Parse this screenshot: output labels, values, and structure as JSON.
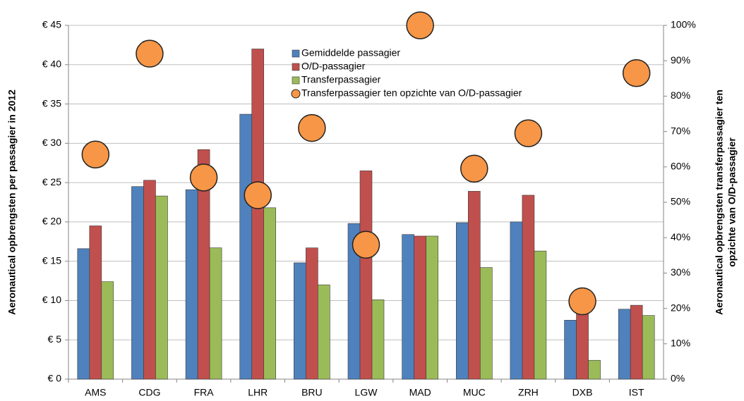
{
  "chart_data": {
    "type": "bar",
    "ylabel": "Aeronautical opbrengsten per passagier in 2012",
    "y2label": [
      "Aeronautical opbrengsten transferpassagier ten",
      "opzichte van O/D-passagier"
    ],
    "categories": [
      "AMS",
      "CDG",
      "FRA",
      "LHR",
      "BRU",
      "LGW",
      "MAD",
      "MUC",
      "ZRH",
      "DXB",
      "IST"
    ],
    "series": [
      {
        "name": "Gemiddelde passagier",
        "color": "#4f81bd",
        "values": [
          16.6,
          24.5,
          24.1,
          33.7,
          14.8,
          19.8,
          18.4,
          19.9,
          20.0,
          7.5,
          8.9
        ]
      },
      {
        "name": "O/D-passagier",
        "color": "#c0504d",
        "values": [
          19.5,
          25.3,
          29.2,
          42.0,
          16.7,
          26.5,
          18.2,
          23.9,
          23.4,
          8.5,
          9.4
        ]
      },
      {
        "name": "Transferpassagier",
        "color": "#9bbb59",
        "values": [
          12.4,
          23.3,
          16.7,
          21.8,
          12.0,
          10.1,
          18.2,
          14.2,
          16.3,
          2.4,
          8.1
        ]
      },
      {
        "name": "Transferpassagier ten opzichte van O/D-passagier",
        "type": "scatter",
        "axis": "y2",
        "color": "#f79646",
        "values": [
          63.5,
          92,
          57,
          52,
          71,
          38,
          100,
          59.5,
          69.5,
          22,
          86.5
        ]
      }
    ],
    "ylim": [
      0,
      45
    ],
    "yticks": [
      {
        "value": 0,
        "label": "€ 0"
      },
      {
        "value": 5,
        "label": "€ 5"
      },
      {
        "value": 10,
        "label": "€ 10"
      },
      {
        "value": 15,
        "label": "€ 15"
      },
      {
        "value": 20,
        "label": "€ 20"
      },
      {
        "value": 25,
        "label": "€ 25"
      },
      {
        "value": 30,
        "label": "€ 30"
      },
      {
        "value": 35,
        "label": "€ 35"
      },
      {
        "value": 40,
        "label": "€ 40"
      },
      {
        "value": 45,
        "label": "€ 45"
      }
    ],
    "y2lim": [
      0,
      100
    ],
    "y2ticks": [
      {
        "value": 0,
        "label": "0%"
      },
      {
        "value": 10,
        "label": "10%"
      },
      {
        "value": 20,
        "label": "20%"
      },
      {
        "value": 30,
        "label": "30%"
      },
      {
        "value": 40,
        "label": "40%"
      },
      {
        "value": 50,
        "label": "50%"
      },
      {
        "value": 60,
        "label": "60%"
      },
      {
        "value": 70,
        "label": "70%"
      },
      {
        "value": 80,
        "label": "80%"
      },
      {
        "value": 90,
        "label": "90%"
      },
      {
        "value": 100,
        "label": "100%"
      }
    ],
    "grid": true
  }
}
